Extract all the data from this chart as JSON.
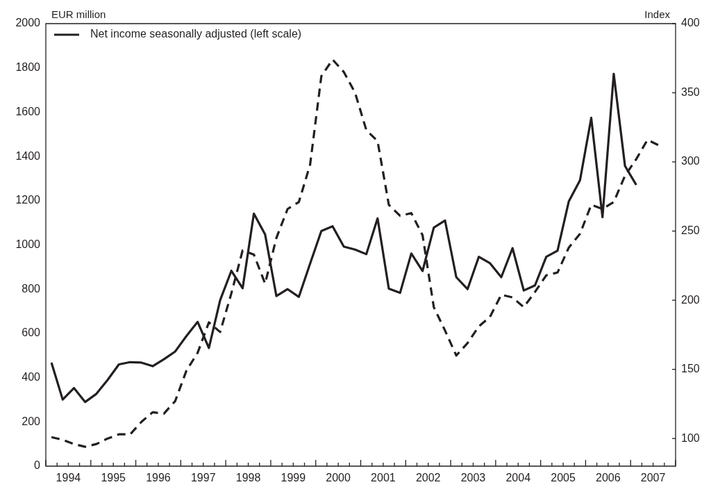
{
  "chart_data": {
    "type": "line",
    "ylabel": "EUR million",
    "y2label": "Index",
    "xlim": [
      1994,
      2008
    ],
    "xticks": [
      {
        "value": 1994,
        "label": null
      },
      {
        "value": 1994.25,
        "label": null
      },
      {
        "value": 1994.5,
        "label": "1994"
      },
      {
        "value": 1994.75,
        "label": null
      },
      {
        "value": 1995,
        "label": null
      },
      {
        "value": 1995.25,
        "label": null
      },
      {
        "value": 1995.5,
        "label": "1995"
      },
      {
        "value": 1995.75,
        "label": null
      },
      {
        "value": 1996,
        "label": null
      },
      {
        "value": 1996.25,
        "label": null
      },
      {
        "value": 1996.5,
        "label": "1996"
      },
      {
        "value": 1996.75,
        "label": null
      },
      {
        "value": 1997,
        "label": null
      },
      {
        "value": 1997.25,
        "label": null
      },
      {
        "value": 1997.5,
        "label": "1997"
      },
      {
        "value": 1997.75,
        "label": null
      },
      {
        "value": 1998,
        "label": null
      },
      {
        "value": 1998.25,
        "label": null
      },
      {
        "value": 1998.5,
        "label": "1998"
      },
      {
        "value": 1998.75,
        "label": null
      },
      {
        "value": 1999,
        "label": null
      },
      {
        "value": 1999.25,
        "label": null
      },
      {
        "value": 1999.5,
        "label": "1999"
      },
      {
        "value": 1999.75,
        "label": null
      },
      {
        "value": 2000,
        "label": null
      },
      {
        "value": 2000.25,
        "label": null
      },
      {
        "value": 2000.5,
        "label": "2000"
      },
      {
        "value": 2000.75,
        "label": null
      },
      {
        "value": 2001,
        "label": null
      },
      {
        "value": 2001.25,
        "label": null
      },
      {
        "value": 2001.5,
        "label": "2001"
      },
      {
        "value": 2001.75,
        "label": null
      },
      {
        "value": 2002,
        "label": null
      },
      {
        "value": 2002.25,
        "label": null
      },
      {
        "value": 2002.5,
        "label": "2002"
      },
      {
        "value": 2002.75,
        "label": null
      },
      {
        "value": 2003,
        "label": null
      },
      {
        "value": 2003.25,
        "label": null
      },
      {
        "value": 2003.5,
        "label": "2003"
      },
      {
        "value": 2003.75,
        "label": null
      },
      {
        "value": 2004,
        "label": null
      },
      {
        "value": 2004.25,
        "label": null
      },
      {
        "value": 2004.5,
        "label": "2004"
      },
      {
        "value": 2004.75,
        "label": null
      },
      {
        "value": 2005,
        "label": null
      },
      {
        "value": 2005.25,
        "label": null
      },
      {
        "value": 2005.5,
        "label": "2005"
      },
      {
        "value": 2005.75,
        "label": null
      },
      {
        "value": 2006,
        "label": null
      },
      {
        "value": 2006.25,
        "label": null
      },
      {
        "value": 2006.5,
        "label": "2006"
      },
      {
        "value": 2006.75,
        "label": null
      },
      {
        "value": 2007,
        "label": null
      },
      {
        "value": 2007.25,
        "label": null
      },
      {
        "value": 2007.5,
        "label": "2007"
      },
      {
        "value": 2007.75,
        "label": null
      },
      {
        "value": 2008,
        "label": null
      }
    ],
    "ylim": [
      0,
      2000
    ],
    "yticks": [
      0,
      200,
      400,
      600,
      800,
      1000,
      1200,
      1400,
      1600,
      1800,
      2000
    ],
    "y2lim": [
      80,
      400
    ],
    "y2ticks": [
      100,
      150,
      200,
      250,
      300,
      350,
      400
    ],
    "grid": false,
    "legend": "top left",
    "marker": "none",
    "series": [
      {
        "name": "Net income seasonally adjusted (left scale)",
        "color": "#231f20",
        "line_style": "solid",
        "x": [
          1994.125,
          1994.375,
          1994.625,
          1994.875,
          1995.125,
          1995.375,
          1995.625,
          1995.875,
          1996.125,
          1996.375,
          1996.625,
          1996.875,
          1997.125,
          1997.375,
          1997.625,
          1997.875,
          1998.125,
          1998.375,
          1998.625,
          1998.875,
          1999.125,
          1999.375,
          1999.625,
          1999.875,
          2000.125,
          2000.375,
          2000.625,
          2000.875,
          2001.125,
          2001.375,
          2001.625,
          2001.875,
          2002.125,
          2002.375,
          2002.625,
          2002.875,
          2003.125,
          2003.375,
          2003.625,
          2003.875,
          2004.125,
          2004.375,
          2004.625,
          2004.875,
          2005.125,
          2005.375,
          2005.625,
          2005.875,
          2006.125,
          2006.375,
          2006.625,
          2006.875,
          2007.125
        ],
        "values": [
          468,
          301,
          353,
          290,
          327,
          390,
          460,
          470,
          468,
          452,
          483,
          518,
          588,
          652,
          534,
          750,
          883,
          804,
          1141,
          1047,
          769,
          800,
          765,
          915,
          1063,
          1084,
          992,
          979,
          958,
          1120,
          802,
          783,
          961,
          882,
          1078,
          1110,
          854,
          800,
          946,
          917,
          854,
          985,
          794,
          817,
          946,
          974,
          1196,
          1292,
          1574,
          1125,
          1773,
          1357,
          1271
        ]
      },
      {
        "color": "#231f20",
        "line_style": "dashed",
        "axis": "y2",
        "x": [
          1994.125,
          1994.375,
          1994.625,
          1994.875,
          1995.125,
          1995.375,
          1995.625,
          1995.875,
          1996.125,
          1996.375,
          1996.625,
          1996.875,
          1997.125,
          1997.375,
          1997.625,
          1997.875,
          1998.125,
          1998.375,
          1998.625,
          1998.875,
          1999.125,
          1999.375,
          1999.625,
          1999.875,
          2000.125,
          2000.375,
          2000.625,
          2000.875,
          2001.125,
          2001.375,
          2001.625,
          2001.875,
          2002.125,
          2002.375,
          2002.625,
          2002.875,
          2003.125,
          2003.375,
          2003.625,
          2003.875,
          2004.125,
          2004.375,
          2004.625,
          2004.875,
          2005.125,
          2005.375,
          2005.625,
          2005.875,
          2006.125,
          2006.375,
          2006.625,
          2006.875,
          2007.125,
          2007.375,
          2007.625
        ],
        "values": [
          101,
          99,
          96,
          94,
          96,
          100,
          103,
          103,
          112,
          119,
          118,
          127,
          149,
          162,
          184,
          177,
          205,
          236,
          233,
          212,
          245,
          266,
          271,
          298,
          362,
          374,
          365,
          350,
          323,
          315,
          269,
          261,
          263,
          247,
          195,
          178,
          160,
          169,
          181,
          188,
          204,
          202,
          195,
          206,
          218,
          220,
          238,
          248,
          269,
          266,
          271,
          290,
          302,
          316,
          312
        ]
      }
    ]
  }
}
